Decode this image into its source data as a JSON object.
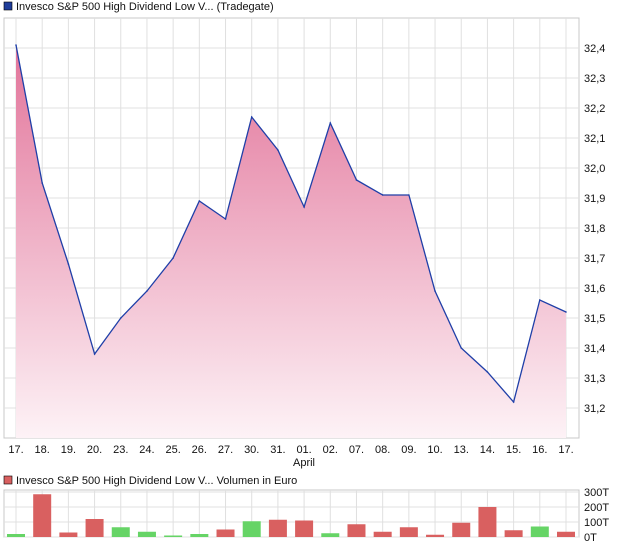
{
  "chart_data": [
    {
      "type": "area",
      "legend": "Invesco S&P 500 High Dividend Low V... (Tradegate)",
      "legend_color": "#1f3d9a",
      "line_color": "#1f3fa8",
      "fill_top_color": "#e2749a",
      "fill_bottom_color": "#fdf2f6",
      "x_labels": [
        "17.",
        "18.",
        "19.",
        "20.",
        "23.",
        "24.",
        "25.",
        "26.",
        "27.",
        "30.",
        "31.",
        "01.",
        "02.",
        "07.",
        "08.",
        "09.",
        "10.",
        "13.",
        "14.",
        "15.",
        "16.",
        "17."
      ],
      "x_sublabel": "April",
      "values": [
        32.41,
        31.95,
        31.68,
        31.38,
        31.5,
        31.59,
        31.7,
        31.89,
        31.83,
        32.17,
        32.06,
        31.87,
        32.15,
        31.96,
        31.91,
        31.91,
        31.59,
        31.4,
        31.32,
        31.22,
        31.56,
        31.52
      ],
      "y_ticks": [
        "31,2",
        "31,3",
        "31,4",
        "31,5",
        "31,6",
        "31,7",
        "31,8",
        "31,9",
        "32,0",
        "32,1",
        "32,2",
        "32,3",
        "32,4"
      ],
      "ylim": [
        31.1,
        32.5
      ],
      "grid": true
    },
    {
      "type": "bar",
      "legend": "Invesco S&P 500 High Dividend Low V... Volumen in Euro",
      "legend_color": "#d96060",
      "up_color": "#66d466",
      "down_color": "#d96060",
      "values": [
        20,
        285,
        30,
        120,
        65,
        35,
        10,
        20,
        50,
        105,
        115,
        110,
        25,
        85,
        35,
        65,
        15,
        95,
        200,
        45,
        70,
        35
      ],
      "direction": [
        "up",
        "down",
        "down",
        "down",
        "up",
        "up",
        "up",
        "up",
        "down",
        "up",
        "down",
        "down",
        "up",
        "down",
        "down",
        "down",
        "down",
        "down",
        "down",
        "down",
        "up",
        "down"
      ],
      "y_ticks": [
        "0T",
        "100T",
        "200T",
        "300T"
      ],
      "ylim": [
        0,
        300
      ],
      "grid": true
    }
  ]
}
